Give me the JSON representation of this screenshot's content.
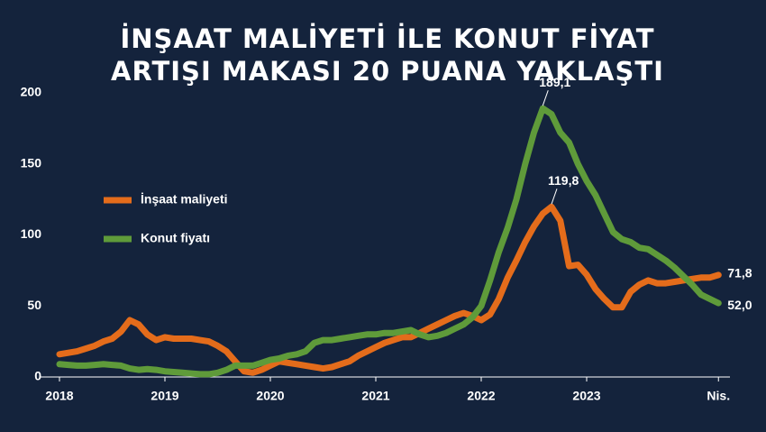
{
  "chart_data": {
    "type": "line",
    "title": [
      "İNŞAAT MALİYETİ İLE KONUT FİYAT",
      "ARTIŞI MAKASI 20 PUANA YAKLAŞTI"
    ],
    "categories": [
      "2018",
      null,
      null,
      null,
      null,
      null,
      null,
      null,
      null,
      null,
      null,
      null,
      "2019",
      null,
      null,
      null,
      null,
      null,
      null,
      null,
      null,
      null,
      null,
      null,
      "2020",
      null,
      null,
      null,
      null,
      null,
      null,
      null,
      null,
      null,
      null,
      null,
      "2021",
      null,
      null,
      null,
      null,
      null,
      null,
      null,
      null,
      null,
      null,
      null,
      "2022",
      null,
      null,
      null,
      null,
      null,
      null,
      null,
      null,
      null,
      null,
      null,
      "2023",
      null,
      null,
      null,
      null,
      null,
      null,
      null,
      null,
      null,
      null,
      null,
      null,
      null,
      null,
      "Nis."
    ],
    "series": [
      {
        "name": "İnşaat maliyeti",
        "color": "#e46c1b",
        "values": [
          16,
          17,
          18,
          20,
          22,
          25,
          27,
          32,
          40,
          37,
          30,
          26,
          28,
          27,
          27,
          27,
          26,
          25,
          22,
          18,
          11,
          4,
          3,
          5,
          8,
          11,
          10,
          9,
          8,
          7,
          6,
          7,
          9,
          11,
          15,
          18,
          21,
          24,
          26,
          28,
          28,
          31,
          34,
          37,
          40,
          43,
          45,
          43,
          40,
          44,
          55,
          70,
          82,
          95,
          106,
          115,
          119.8,
          110,
          78,
          79,
          72,
          62,
          55,
          49,
          49,
          60,
          65,
          68,
          66,
          66,
          67,
          68,
          69,
          70,
          70,
          71.8
        ],
        "value_labels": [
          null,
          null,
          null,
          null,
          null,
          null,
          null,
          null,
          null,
          null,
          null,
          null,
          null,
          null,
          null,
          null,
          null,
          null,
          null,
          null,
          null,
          null,
          null,
          null,
          null,
          null,
          null,
          null,
          null,
          null,
          null,
          null,
          null,
          null,
          null,
          null,
          null,
          null,
          null,
          null,
          null,
          null,
          null,
          null,
          null,
          null,
          null,
          null,
          null,
          null,
          null,
          null,
          null,
          null,
          null,
          null,
          "119,8",
          null,
          null,
          null,
          null,
          null,
          null,
          null,
          null,
          null,
          null,
          null,
          null,
          null,
          null,
          null,
          null,
          null,
          null,
          "71,8"
        ]
      },
      {
        "name": "Konut fiyatı",
        "color": "#5f9b3a",
        "values": [
          9,
          8.5,
          8,
          8,
          8.5,
          9,
          8.5,
          8,
          6,
          5,
          5.5,
          5,
          4,
          3.5,
          3,
          2.5,
          2,
          2,
          3,
          5,
          8,
          8,
          8,
          10,
          12,
          13,
          15,
          16,
          18,
          24,
          26,
          26,
          27,
          28,
          29,
          30,
          30,
          31,
          31,
          32,
          33,
          30,
          28,
          29,
          31,
          34,
          37,
          42,
          50,
          68,
          88,
          105,
          125,
          150,
          172,
          189.1,
          185,
          172,
          165,
          150,
          138,
          128,
          115,
          102,
          97,
          95,
          91,
          90,
          86,
          82,
          77,
          71,
          65,
          58,
          55,
          52.0
        ],
        "value_labels": [
          null,
          null,
          null,
          null,
          null,
          null,
          null,
          null,
          null,
          null,
          null,
          null,
          null,
          null,
          null,
          null,
          null,
          null,
          null,
          null,
          null,
          null,
          null,
          null,
          null,
          null,
          null,
          null,
          null,
          null,
          null,
          null,
          null,
          null,
          null,
          null,
          null,
          null,
          null,
          null,
          null,
          null,
          null,
          null,
          null,
          null,
          null,
          null,
          null,
          null,
          null,
          null,
          null,
          null,
          null,
          "189,1",
          null,
          null,
          null,
          null,
          null,
          null,
          null,
          null,
          null,
          null,
          null,
          null,
          null,
          null,
          null,
          null,
          null,
          null,
          null,
          "52,0"
        ]
      }
    ],
    "ylim": [
      0,
      200
    ],
    "yticks": [
      0,
      50,
      100,
      150,
      200
    ],
    "grid": false,
    "legend": "left"
  }
}
